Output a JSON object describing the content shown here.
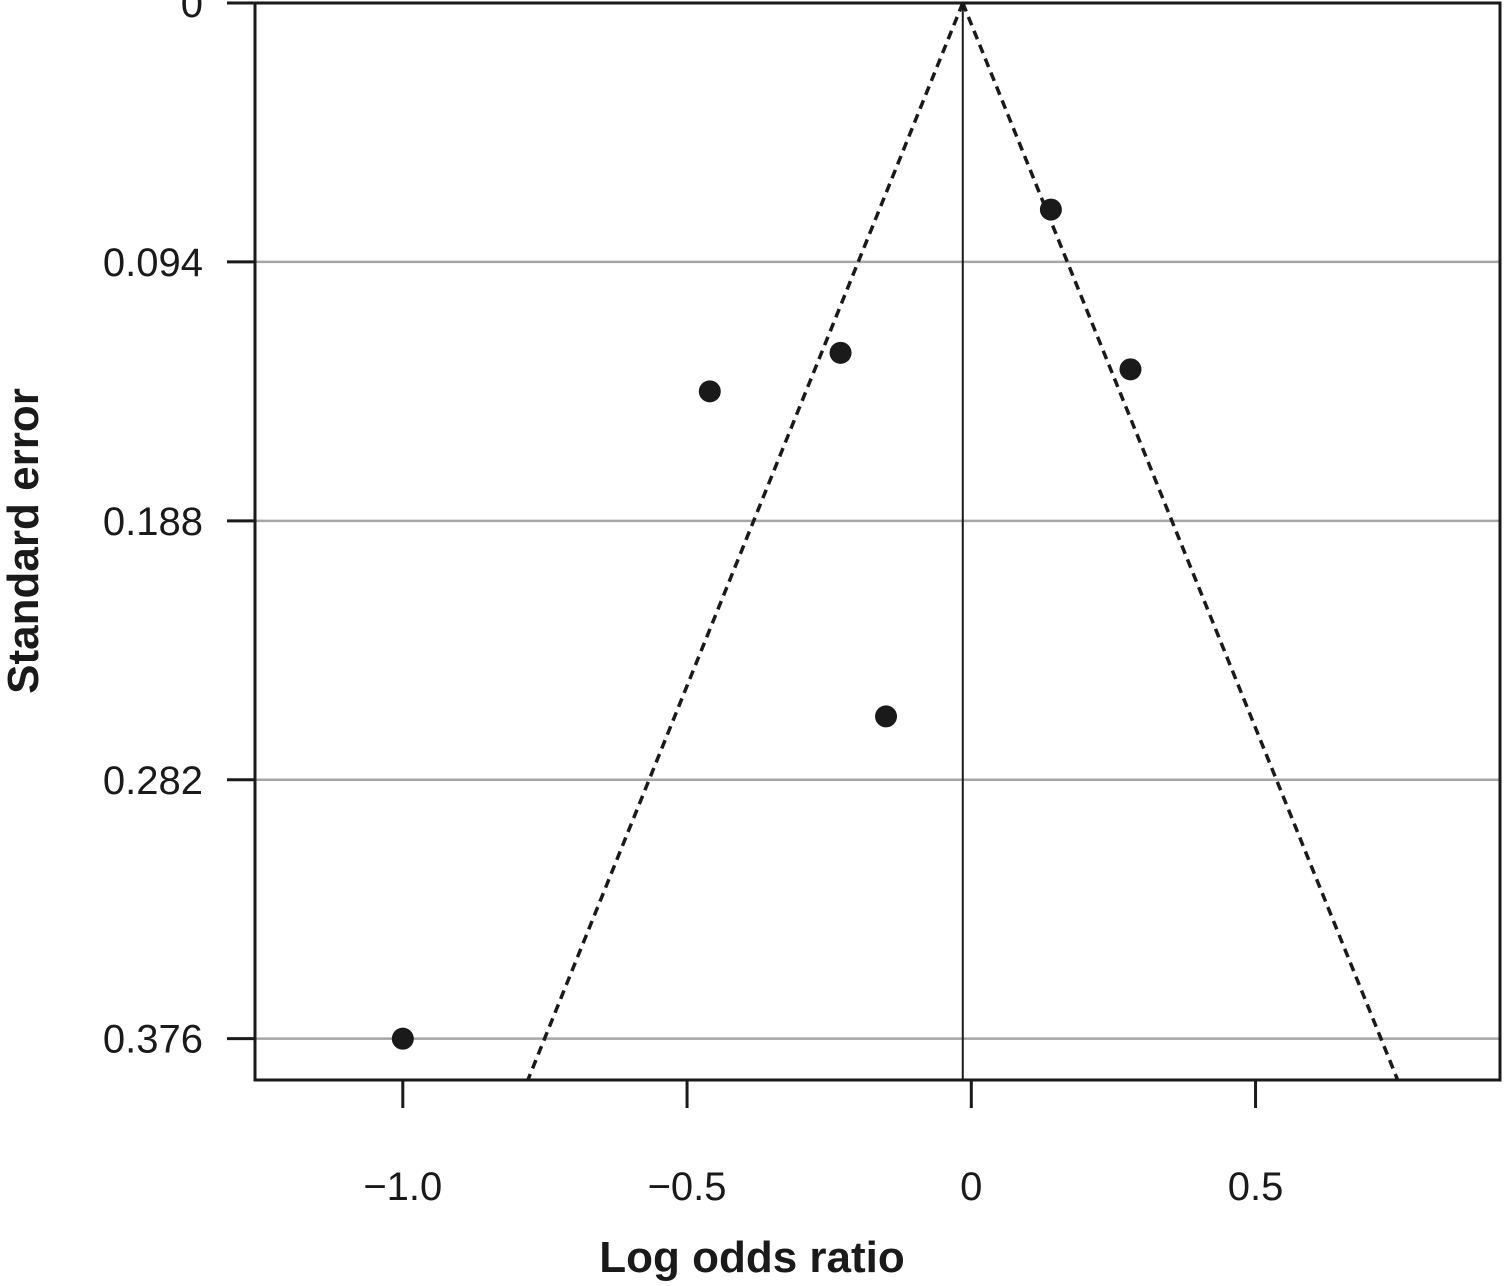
{
  "chart_data": {
    "type": "scatter",
    "title": "",
    "xlabel": "Log odds ratio",
    "ylabel": "Standard error",
    "x_ticks": [
      {
        "value": -1.0,
        "label": "−1.0"
      },
      {
        "value": -0.5,
        "label": "−0.5"
      },
      {
        "value": 0.0,
        "label": "0"
      },
      {
        "value": 0.5,
        "label": "0.5"
      }
    ],
    "y_ticks": [
      {
        "value": 0,
        "label": "0"
      },
      {
        "value": 0.094,
        "label": "0.094"
      },
      {
        "value": 0.188,
        "label": "0.188"
      },
      {
        "value": 0.282,
        "label": "0.282"
      },
      {
        "value": 0.376,
        "label": "0.376"
      }
    ],
    "xlim": [
      -1.26,
      0.93
    ],
    "ylim": [
      0.391,
      0
    ],
    "y_inverted": true,
    "grid": "horizontal",
    "pooled_estimate": -0.015,
    "funnel_limits": [
      {
        "x1": -0.015,
        "y1": 0,
        "x2": -0.78,
        "y2": 0.391
      },
      {
        "x1": -0.015,
        "y1": 0,
        "x2": 0.75,
        "y2": 0.391
      }
    ],
    "points": [
      {
        "x": 0.14,
        "y": 0.075
      },
      {
        "x": -0.23,
        "y": 0.127
      },
      {
        "x": 0.28,
        "y": 0.133
      },
      {
        "x": -0.46,
        "y": 0.141
      },
      {
        "x": -0.15,
        "y": 0.259
      },
      {
        "x": -1.0,
        "y": 0.376
      }
    ],
    "colors": {
      "points": "#1a1a1a",
      "grid": "#a6a6a6",
      "axis": "#1a1a1a",
      "funnel": "#1a1a1a"
    }
  }
}
